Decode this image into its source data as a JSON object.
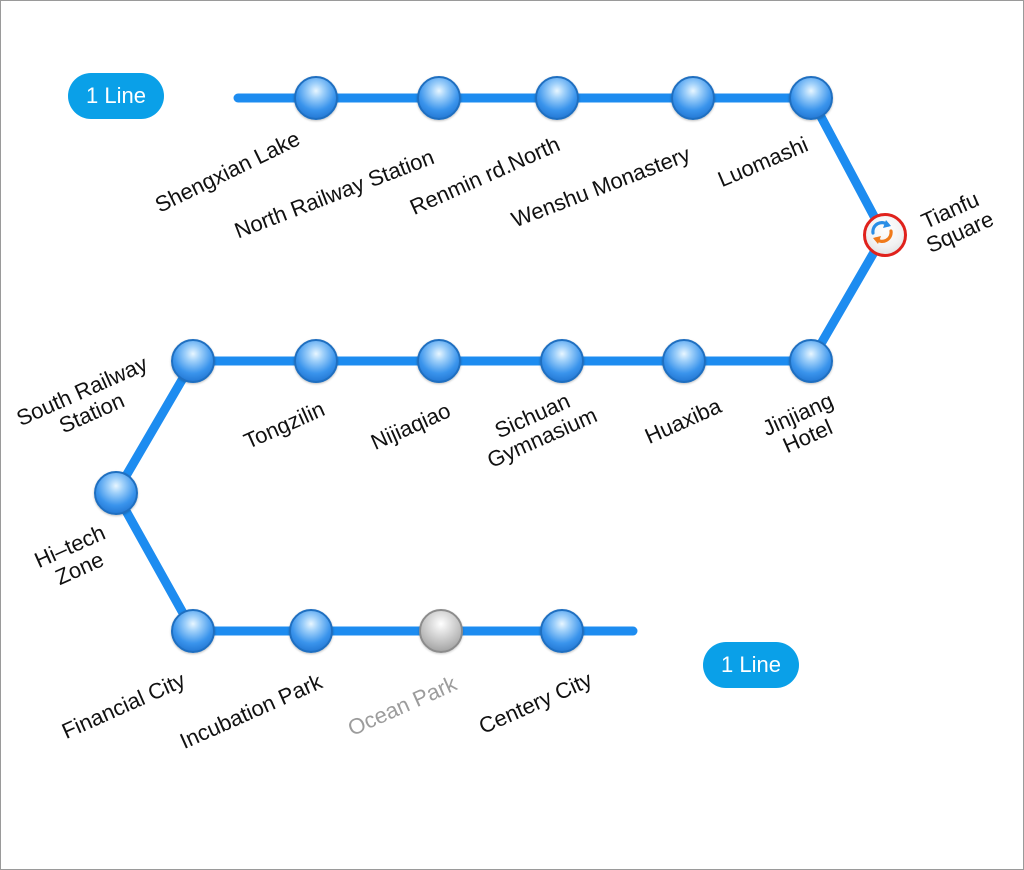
{
  "line": {
    "name": "1 Line",
    "color": "#1d8cf0",
    "badge_color": "#0aa0e8",
    "end_labels": [
      "1 Line",
      "1 Line"
    ]
  },
  "stations": [
    {
      "id": "shengxian-lake",
      "name": "Shengxian Lake",
      "status": "active"
    },
    {
      "id": "north-railway-station",
      "name": "North Railway Station",
      "status": "active"
    },
    {
      "id": "renmin-rd-north",
      "name": "Renmin rd.North",
      "status": "active"
    },
    {
      "id": "wenshu-monastery",
      "name": "Wenshu Monastery",
      "status": "active"
    },
    {
      "id": "luomashi",
      "name": "Luomashi",
      "status": "active"
    },
    {
      "id": "tianfu-square",
      "name": "Tianfu\nSquare",
      "status": "transfer",
      "icon": "transfer-arrows-icon"
    },
    {
      "id": "jinjiang-hotel",
      "name": "Jinjiang\nHotel",
      "status": "active"
    },
    {
      "id": "huaxiba",
      "name": "Huaxiba",
      "status": "active"
    },
    {
      "id": "sichuan-gymnasium",
      "name": "Sichuan\nGymnasium",
      "status": "active"
    },
    {
      "id": "nijiaqiao",
      "name": "Nijiaqiao",
      "status": "active"
    },
    {
      "id": "tongzilin",
      "name": "Tongzilin",
      "status": "active"
    },
    {
      "id": "south-railway-station",
      "name": "South Railway\nStation",
      "status": "active"
    },
    {
      "id": "hi-tech-zone",
      "name": "Hi–tech\nZone",
      "status": "active"
    },
    {
      "id": "financial-city",
      "name": "Financial City",
      "status": "active"
    },
    {
      "id": "incubation-park",
      "name": "Incubation Park",
      "status": "active"
    },
    {
      "id": "ocean-park",
      "name": "Ocean Park",
      "status": "inactive"
    },
    {
      "id": "centery-city",
      "name": "Centery City",
      "status": "active"
    }
  ]
}
